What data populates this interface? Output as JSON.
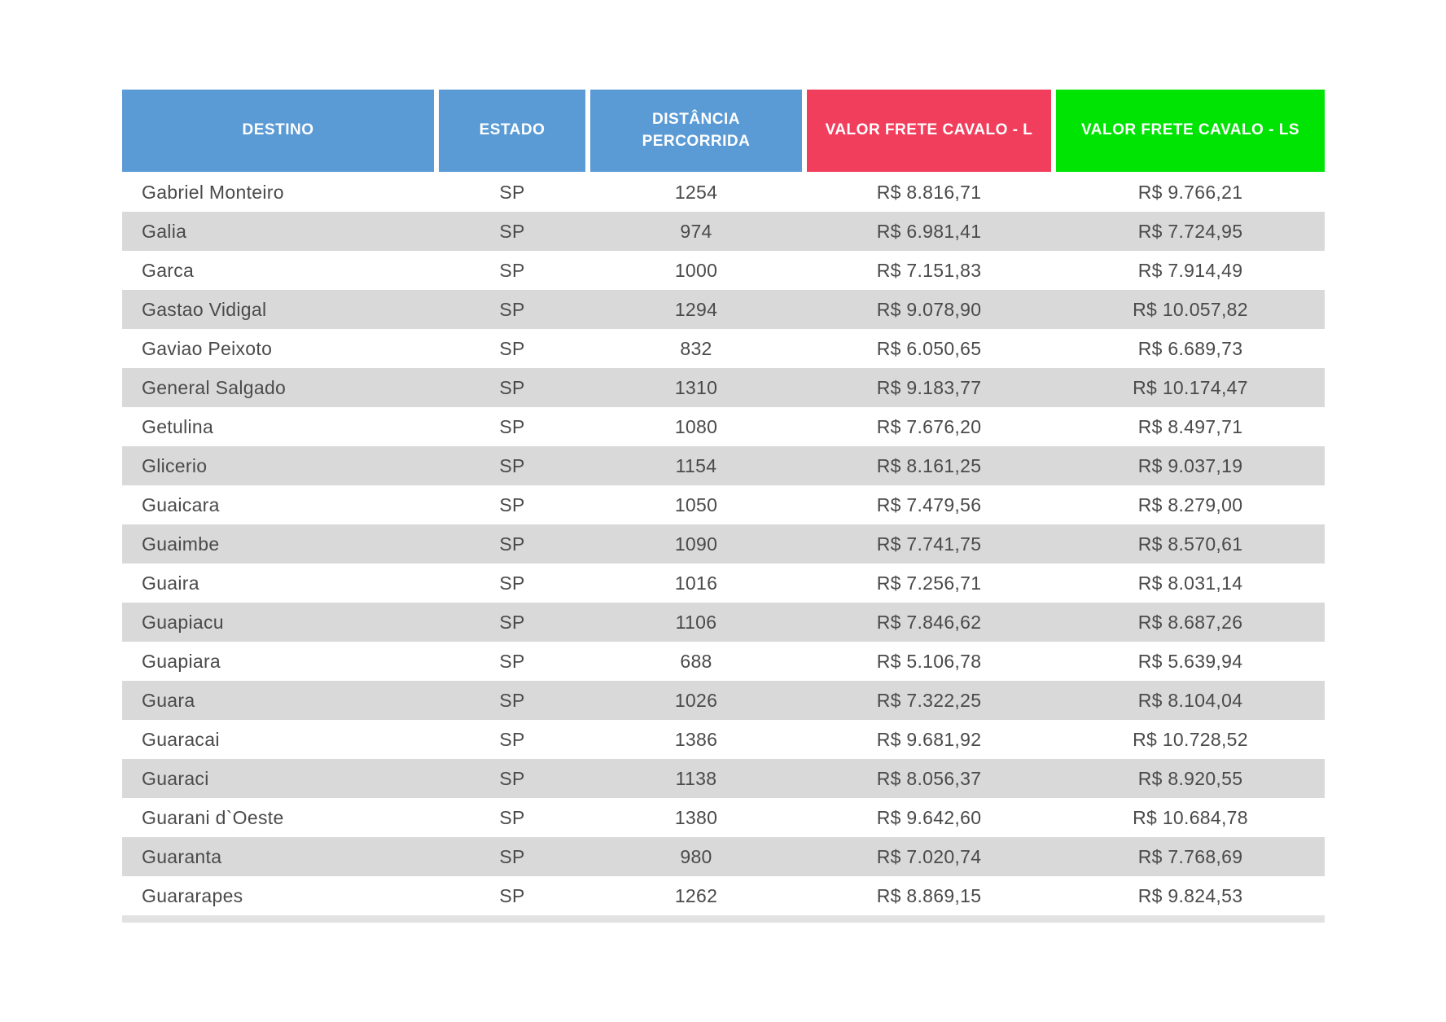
{
  "colors": {
    "header_blue": "#5B9BD5",
    "header_red": "#F13E5C",
    "header_green": "#00E404",
    "row_stripe": "#D9D9D9",
    "row_plain": "#FFFFFF",
    "header_text": "#FFFFFF",
    "body_text": "#4A4A4A"
  },
  "chart_data": {
    "type": "table",
    "columns": [
      {
        "key": "destino",
        "label": "DESTINO",
        "color": "#5B9BD5"
      },
      {
        "key": "estado",
        "label": "ESTADO",
        "color": "#5B9BD5"
      },
      {
        "key": "distancia",
        "label": "DISTÂNCIA PERCORRIDA",
        "color": "#5B9BD5"
      },
      {
        "key": "valor-frete-cavalo-l",
        "label": "VALOR FRETE CAVALO - L",
        "color": "#F13E5C"
      },
      {
        "key": "valor-frete-cavalo-ls",
        "label": "VALOR FRETE CAVALO - LS",
        "color": "#00E404"
      }
    ],
    "rows": [
      [
        "Gabriel Monteiro",
        "SP",
        "1254",
        "R$ 8.816,71",
        "R$ 9.766,21"
      ],
      [
        "Galia",
        "SP",
        "974",
        "R$ 6.981,41",
        "R$ 7.724,95"
      ],
      [
        "Garca",
        "SP",
        "1000",
        "R$ 7.151,83",
        "R$ 7.914,49"
      ],
      [
        "Gastao Vidigal",
        "SP",
        "1294",
        "R$ 9.078,90",
        "R$ 10.057,82"
      ],
      [
        "Gaviao Peixoto",
        "SP",
        "832",
        "R$ 6.050,65",
        "R$ 6.689,73"
      ],
      [
        "General Salgado",
        "SP",
        "1310",
        "R$ 9.183,77",
        "R$ 10.174,47"
      ],
      [
        "Getulina",
        "SP",
        "1080",
        "R$ 7.676,20",
        "R$ 8.497,71"
      ],
      [
        "Glicerio",
        "SP",
        "1154",
        "R$ 8.161,25",
        "R$ 9.037,19"
      ],
      [
        "Guaicara",
        "SP",
        "1050",
        "R$ 7.479,56",
        "R$ 8.279,00"
      ],
      [
        "Guaimbe",
        "SP",
        "1090",
        "R$ 7.741,75",
        "R$ 8.570,61"
      ],
      [
        "Guaira",
        "SP",
        "1016",
        "R$ 7.256,71",
        "R$ 8.031,14"
      ],
      [
        "Guapiacu",
        "SP",
        "1106",
        "R$ 7.846,62",
        "R$ 8.687,26"
      ],
      [
        "Guapiara",
        "SP",
        "688",
        "R$ 5.106,78",
        "R$ 5.639,94"
      ],
      [
        "Guara",
        "SP",
        "1026",
        "R$ 7.322,25",
        "R$ 8.104,04"
      ],
      [
        "Guaracai",
        "SP",
        "1386",
        "R$ 9.681,92",
        "R$ 10.728,52"
      ],
      [
        "Guaraci",
        "SP",
        "1138",
        "R$ 8.056,37",
        "R$ 8.920,55"
      ],
      [
        "Guarani d`Oeste",
        "SP",
        "1380",
        "R$ 9.642,60",
        "R$ 10.684,78"
      ],
      [
        "Guaranta",
        "SP",
        "980",
        "R$ 7.020,74",
        "R$ 7.768,69"
      ],
      [
        "Guararapes",
        "SP",
        "1262",
        "R$ 8.869,15",
        "R$ 9.824,53"
      ]
    ]
  }
}
